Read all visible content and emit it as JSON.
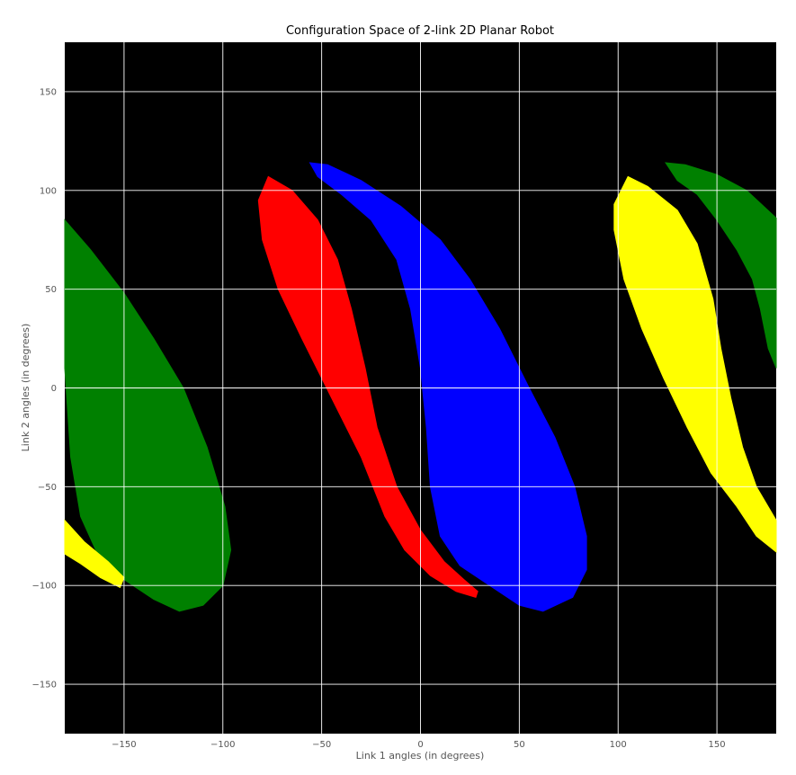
{
  "chart_data": {
    "type": "heatmap",
    "title": "Configuration Space of 2-link 2D Planar Robot",
    "xlabel": "Link 1 angles (in degrees)",
    "ylabel": "Link 2 angles (in degrees)",
    "xlim": [
      -180,
      180
    ],
    "ylim": [
      -175,
      175
    ],
    "xticks": [
      -150,
      -100,
      -50,
      0,
      50,
      100,
      150
    ],
    "yticks": [
      150,
      100,
      50,
      0,
      -50,
      -100,
      -150
    ],
    "xtick_labels": [
      "−150",
      "−100",
      "−50",
      "0",
      "50",
      "100",
      "150"
    ],
    "ytick_labels": [
      "150",
      "100",
      "50",
      "0",
      "−50",
      "−100",
      "−150"
    ],
    "grid": true,
    "background_color": "#000000",
    "grid_color": "#ffffff",
    "regions": [
      {
        "color": "#008000",
        "polygon": [
          [
            -180,
            85
          ],
          [
            -167,
            70
          ],
          [
            -150,
            48
          ],
          [
            -135,
            25
          ],
          [
            -120,
            0
          ],
          [
            -108,
            -30
          ],
          [
            -99,
            -60
          ],
          [
            -96,
            -82
          ],
          [
            -100,
            -100
          ],
          [
            -110,
            -110
          ],
          [
            -122,
            -113
          ],
          [
            -135,
            -107
          ],
          [
            -150,
            -97
          ],
          [
            -163,
            -85
          ],
          [
            -172,
            -65
          ],
          [
            -177,
            -35
          ],
          [
            -179,
            -5
          ],
          [
            -180,
            10
          ]
        ]
      },
      {
        "color": "#ffff00",
        "polygon": [
          [
            -180,
            -67
          ],
          [
            -170,
            -78
          ],
          [
            -158,
            -88
          ],
          [
            -150,
            -96
          ],
          [
            -152,
            -101
          ],
          [
            -162,
            -96
          ],
          [
            -172,
            -89
          ],
          [
            -180,
            -84
          ]
        ]
      },
      {
        "color": "#ff0000",
        "polygon": [
          [
            -77,
            107
          ],
          [
            -65,
            100
          ],
          [
            -52,
            85
          ],
          [
            -42,
            65
          ],
          [
            -35,
            40
          ],
          [
            -28,
            10
          ],
          [
            -22,
            -20
          ],
          [
            -12,
            -50
          ],
          [
            0,
            -72
          ],
          [
            12,
            -88
          ],
          [
            22,
            -97
          ],
          [
            29,
            -103
          ],
          [
            28,
            -106
          ],
          [
            18,
            -103
          ],
          [
            5,
            -95
          ],
          [
            -8,
            -82
          ],
          [
            -18,
            -65
          ],
          [
            -30,
            -35
          ],
          [
            -45,
            -5
          ],
          [
            -60,
            25
          ],
          [
            -72,
            50
          ],
          [
            -80,
            75
          ],
          [
            -82,
            95
          ]
        ]
      },
      {
        "color": "#0000ff",
        "polygon": [
          [
            -56,
            114
          ],
          [
            -47,
            113
          ],
          [
            -30,
            105
          ],
          [
            -10,
            92
          ],
          [
            10,
            75
          ],
          [
            25,
            55
          ],
          [
            40,
            30
          ],
          [
            55,
            0
          ],
          [
            68,
            -25
          ],
          [
            78,
            -50
          ],
          [
            84,
            -75
          ],
          [
            84,
            -92
          ],
          [
            77,
            -106
          ],
          [
            62,
            -113
          ],
          [
            50,
            -110
          ],
          [
            35,
            -100
          ],
          [
            20,
            -90
          ],
          [
            10,
            -75
          ],
          [
            5,
            -50
          ],
          [
            3,
            -20
          ],
          [
            0,
            10
          ],
          [
            -5,
            40
          ],
          [
            -12,
            65
          ],
          [
            -25,
            85
          ],
          [
            -40,
            98
          ],
          [
            -52,
            107
          ]
        ]
      },
      {
        "color": "#ffff00",
        "polygon": [
          [
            105,
            107
          ],
          [
            115,
            102
          ],
          [
            130,
            90
          ],
          [
            140,
            73
          ],
          [
            148,
            45
          ],
          [
            152,
            20
          ],
          [
            157,
            -5
          ],
          [
            163,
            -30
          ],
          [
            170,
            -50
          ],
          [
            180,
            -67
          ],
          [
            180,
            -83
          ],
          [
            170,
            -75
          ],
          [
            160,
            -60
          ],
          [
            147,
            -43
          ],
          [
            135,
            -20
          ],
          [
            123,
            5
          ],
          [
            112,
            30
          ],
          [
            103,
            55
          ],
          [
            98,
            80
          ],
          [
            98,
            93
          ]
        ]
      },
      {
        "color": "#008000",
        "polygon": [
          [
            124,
            114
          ],
          [
            134,
            113
          ],
          [
            150,
            108
          ],
          [
            165,
            100
          ],
          [
            180,
            86
          ],
          [
            180,
            10
          ],
          [
            176,
            20
          ],
          [
            172,
            40
          ],
          [
            168,
            55
          ],
          [
            160,
            70
          ],
          [
            150,
            85
          ],
          [
            140,
            98
          ],
          [
            130,
            105
          ]
        ]
      }
    ]
  }
}
